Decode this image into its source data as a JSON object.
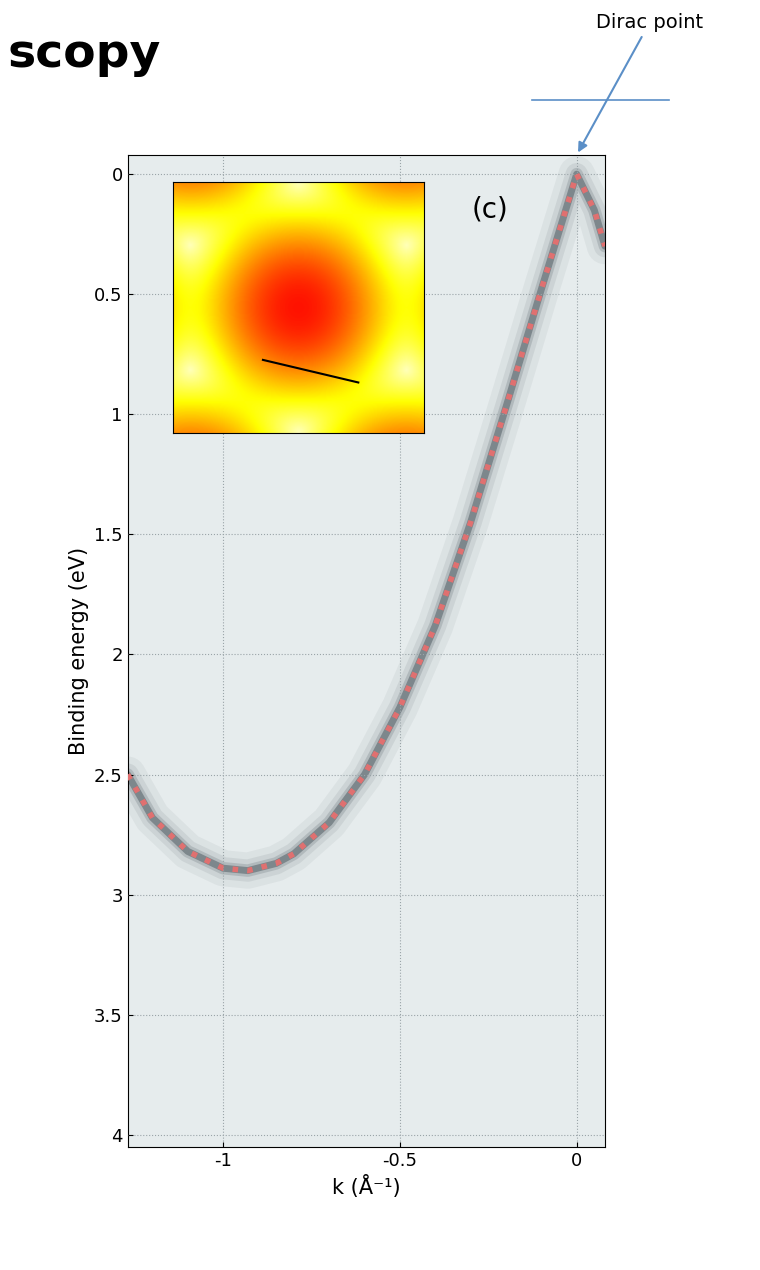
{
  "chart_data": {
    "type": "line",
    "title": "scopy",
    "annotations": [
      "Dirac point",
      "(c)"
    ],
    "x_label": "k (Å⁻¹)",
    "y_label": "Binding energy (eV)",
    "x": [
      -1.27,
      -1.2,
      -1.1,
      -1.0,
      -0.93,
      -0.85,
      -0.8,
      -0.7,
      -0.6,
      -0.5,
      -0.4,
      -0.3,
      -0.2,
      -0.1,
      0.0,
      0.05,
      0.08
    ],
    "values": [
      2.5,
      2.68,
      2.82,
      2.89,
      2.9,
      2.87,
      2.83,
      2.7,
      2.5,
      2.22,
      1.88,
      1.45,
      0.97,
      0.48,
      0.0,
      0.15,
      0.3
    ],
    "color": "#e07070",
    "line_style": "dotted",
    "xlim": [
      -1.27,
      0.08
    ],
    "xticks": [
      -1,
      -0.5,
      0
    ],
    "ylim": [
      4.05,
      -0.08
    ],
    "yticks": [
      0,
      0.5,
      1,
      1.5,
      2,
      2.5,
      3,
      3.5,
      4
    ],
    "grid": true
  }
}
